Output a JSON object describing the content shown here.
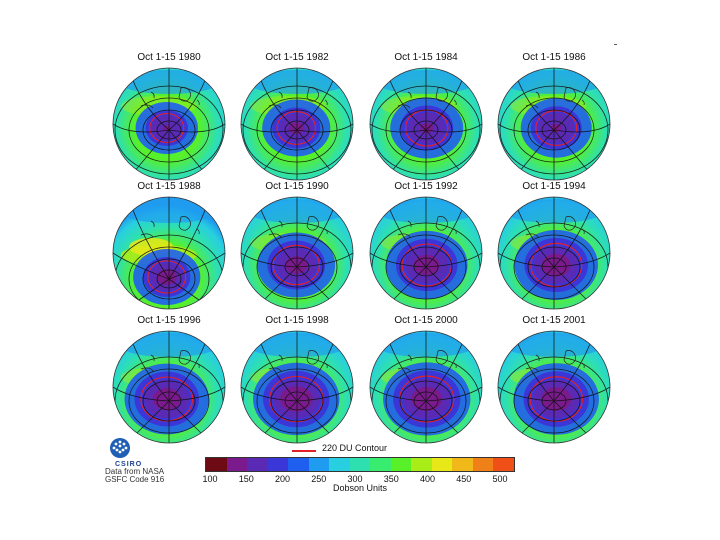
{
  "panels": [
    {
      "title": "Oct 1-15 1980",
      "hole": 0.3,
      "core": 0.25
    },
    {
      "title": "Oct 1-15 1982",
      "hole": 0.42,
      "core": 0.45
    },
    {
      "title": "Oct 1-15 1984",
      "hole": 0.52,
      "core": 0.35
    },
    {
      "title": "Oct 1-15 1986",
      "hole": 0.48,
      "core": 0.3
    },
    {
      "title": "Oct 1-15 1988",
      "hole": 0.4,
      "core": 0.6
    },
    {
      "title": "Oct 1-15 1990",
      "hole": 0.62,
      "core": 0.55
    },
    {
      "title": "Oct 1-15 1992",
      "hole": 0.7,
      "core": 0.6
    },
    {
      "title": "Oct 1-15 1994",
      "hole": 0.74,
      "core": 0.65
    },
    {
      "title": "Oct 1-15 1996",
      "hole": 0.76,
      "core": 0.62
    },
    {
      "title": "Oct 1-15 1998",
      "hole": 0.8,
      "core": 0.7
    },
    {
      "title": "Oct 1-15 2000",
      "hole": 0.82,
      "core": 0.65
    },
    {
      "title": "Oct 1-15 2001",
      "hole": 0.78,
      "core": 0.66
    }
  ],
  "legend": {
    "contour_label": "220 DU Contour",
    "contour_color": "#e0202a",
    "ticks": [
      "100",
      "150",
      "200",
      "250",
      "300",
      "350",
      "400",
      "450",
      "500"
    ],
    "units": "Dobson Units",
    "colors": [
      "#6e0a14",
      "#7a1a8c",
      "#5a2ab4",
      "#3a36d8",
      "#1f5ff0",
      "#1f9cf0",
      "#28cfe0",
      "#2ee0b0",
      "#38ec70",
      "#58f028",
      "#a8ec18",
      "#e8e818",
      "#f0b818",
      "#f08018",
      "#f05018"
    ]
  },
  "logo": {
    "name": "CSIRO",
    "credit_lines": [
      "Data from NASA",
      "GSFC Code 916"
    ]
  }
}
